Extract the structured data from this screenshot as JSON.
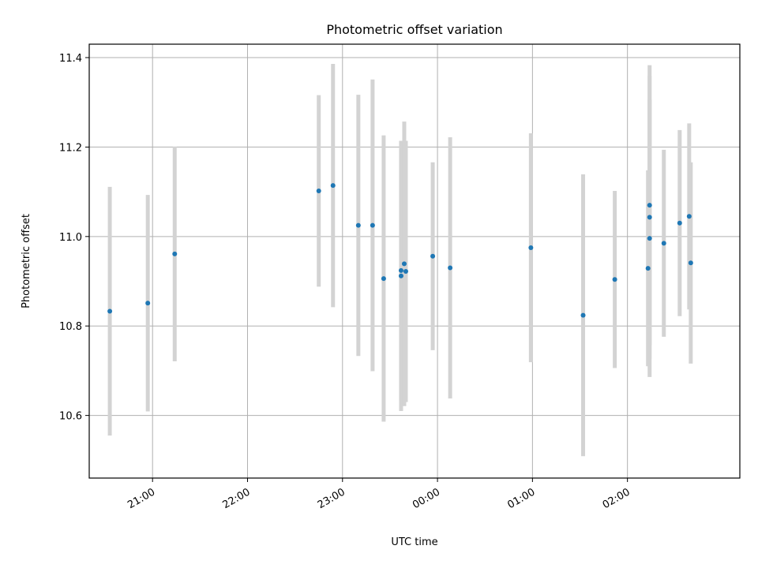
{
  "chart_data": {
    "type": "scatter",
    "title": "Photometric offset variation",
    "xlabel": "UTC time",
    "ylabel": "Photometric offset",
    "x_axis": {
      "kind": "time",
      "ticks": [
        "21:00",
        "22:00",
        "23:00",
        "00:00",
        "01:00",
        "02:00"
      ],
      "range": [
        "20:20",
        "03:11"
      ]
    },
    "y_axis": {
      "ticks": [
        "10.6",
        "10.8",
        "11.0",
        "11.2",
        "11.4"
      ],
      "range": [
        10.46,
        11.43
      ]
    },
    "grid": true,
    "legend": "none",
    "colors": {
      "points": "#1f77b4",
      "error_bars": "#d3d3d3",
      "grid": "#b0b0b0"
    },
    "points": [
      {
        "x": "20:33",
        "y": 10.833,
        "yerr": 0.278
      },
      {
        "x": "20:57",
        "y": 10.851,
        "yerr": 0.242
      },
      {
        "x": "21:14",
        "y": 10.961,
        "yerr": 0.24
      },
      {
        "x": "22:45",
        "y": 11.102,
        "yerr": 0.214
      },
      {
        "x": "22:54",
        "y": 11.114,
        "yerr": 0.272
      },
      {
        "x": "23:10",
        "y": 11.025,
        "yerr": 0.292
      },
      {
        "x": "23:19",
        "y": 11.025,
        "yerr": 0.326
      },
      {
        "x": "23:26",
        "y": 10.906,
        "yerr": 0.32
      },
      {
        "x": "23:37",
        "y": 10.912,
        "yerr": 0.302
      },
      {
        "x": "23:37",
        "y": 10.924,
        "yerr": 0.29
      },
      {
        "x": "23:39",
        "y": 10.939,
        "yerr": 0.318
      },
      {
        "x": "23:40",
        "y": 10.922,
        "yerr": 0.292
      },
      {
        "x": "23:57",
        "y": 10.956,
        "yerr": 0.21
      },
      {
        "x": "00:08",
        "y": 10.93,
        "yerr": 0.292
      },
      {
        "x": "00:59",
        "y": 10.975,
        "yerr": 0.256
      },
      {
        "x": "01:32",
        "y": 10.824,
        "yerr": 0.315
      },
      {
        "x": "01:52",
        "y": 10.904,
        "yerr": 0.198
      },
      {
        "x": "02:13",
        "y": 10.929,
        "yerr": 0.219
      },
      {
        "x": "02:14",
        "y": 11.043,
        "yerr": 0.316
      },
      {
        "x": "02:14",
        "y": 11.07,
        "yerr": 0.313
      },
      {
        "x": "02:14",
        "y": 10.996,
        "yerr": 0.31
      },
      {
        "x": "02:23",
        "y": 10.985,
        "yerr": 0.209
      },
      {
        "x": "02:33",
        "y": 11.03,
        "yerr": 0.208
      },
      {
        "x": "02:39",
        "y": 11.045,
        "yerr": 0.208
      },
      {
        "x": "02:40",
        "y": 10.941,
        "yerr": 0.225
      }
    ]
  }
}
